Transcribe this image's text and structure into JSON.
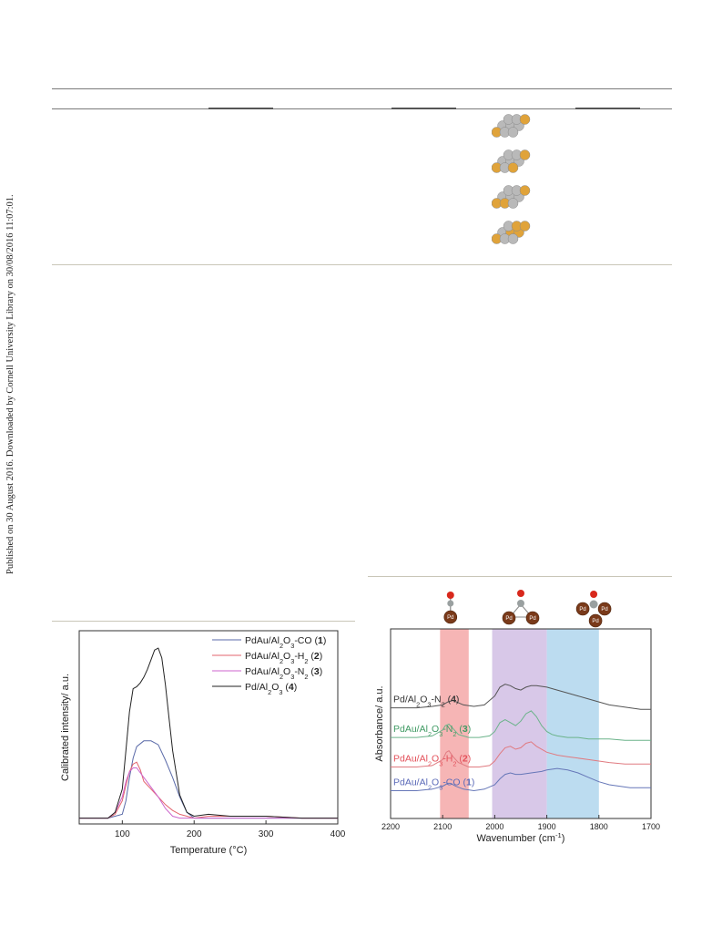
{
  "sidebar_text": "Published on 30 August 2016. Downloaded by Cornell University Library on 30/08/2016 11:07:01.",
  "table_icons": [
    {
      "name": "cluster-1",
      "gold_colors": "#e0a33a",
      "pd_color": "#b9b9b9"
    },
    {
      "name": "cluster-2",
      "gold_colors": "#e0a33a",
      "pd_color": "#b9b9b9"
    },
    {
      "name": "cluster-3",
      "gold_colors": "#e0a33a",
      "pd_color": "#b9b9b9"
    },
    {
      "name": "cluster-4",
      "gold_colors": "#e0a33a",
      "pd_color": "#b9b9b9"
    }
  ],
  "chart_data": [
    {
      "type": "line",
      "xlabel": "Temperature (°C)",
      "ylabel": "Calibrated intensity/ a.u.",
      "xlim": [
        40,
        400
      ],
      "xticks": [
        100,
        200,
        300,
        400
      ],
      "legend_position": "top-right",
      "series": [
        {
          "name": "PdAu/Al2O3-CO (1)",
          "label_main": "PdAu/Al",
          "sub1": "2",
          "mid": "O",
          "sub2": "3",
          "suffix": "-CO (",
          "num": "1",
          "close": ")",
          "color": "#5a6aa8",
          "x": [
            40,
            60,
            80,
            90,
            100,
            105,
            110,
            115,
            120,
            130,
            140,
            150,
            160,
            170,
            180,
            190,
            200,
            220,
            250,
            300,
            350,
            400
          ],
          "y": [
            0.03,
            0.03,
            0.03,
            0.04,
            0.05,
            0.12,
            0.24,
            0.34,
            0.4,
            0.43,
            0.43,
            0.41,
            0.33,
            0.24,
            0.14,
            0.06,
            0.03,
            0.03,
            0.03,
            0.03,
            0.03,
            0.03
          ]
        },
        {
          "name": "PdAu/Al2O3-H2 (2)",
          "label_main": "PdAu/Al",
          "sub1": "2",
          "mid": "O",
          "sub2": "3",
          "suffix": "-H",
          "sub3": "2",
          "tail": " (",
          "num": "2",
          "close": ")",
          "color": "#e3636c",
          "x": [
            40,
            60,
            80,
            90,
            100,
            105,
            110,
            115,
            120,
            125,
            130,
            140,
            150,
            160,
            170,
            180,
            190,
            200,
            220,
            250,
            300,
            350,
            400
          ],
          "y": [
            0.03,
            0.03,
            0.03,
            0.05,
            0.12,
            0.2,
            0.27,
            0.31,
            0.32,
            0.28,
            0.22,
            0.18,
            0.14,
            0.1,
            0.07,
            0.05,
            0.04,
            0.03,
            0.04,
            0.04,
            0.04,
            0.03,
            0.03
          ]
        },
        {
          "name": "PdAu/Al2O3-N2 (3)",
          "label_main": "PdAu/Al",
          "sub1": "2",
          "mid": "O",
          "sub2": "3",
          "suffix": "-N",
          "sub3": "2",
          "tail": " (",
          "num": "3",
          "close": ")",
          "color": "#cc66cc",
          "x": [
            40,
            60,
            80,
            90,
            100,
            105,
            110,
            115,
            120,
            130,
            140,
            150,
            160,
            170,
            180,
            190,
            200,
            220,
            250,
            300,
            350,
            400
          ],
          "y": [
            0.03,
            0.03,
            0.03,
            0.06,
            0.14,
            0.22,
            0.27,
            0.29,
            0.29,
            0.24,
            0.19,
            0.14,
            0.08,
            0.04,
            0.03,
            0.03,
            0.03,
            0.03,
            0.03,
            0.03,
            0.03,
            0.03
          ]
        },
        {
          "name": "Pd/Al2O3 (4)",
          "label_main": "Pd/Al",
          "sub1": "2",
          "mid": "O",
          "sub2": "3",
          "suffix": "",
          "tail": " (",
          "num": "4",
          "close": ")",
          "color": "#222222",
          "x": [
            40,
            60,
            80,
            90,
            100,
            105,
            110,
            115,
            120,
            125,
            130,
            135,
            140,
            145,
            150,
            155,
            160,
            165,
            170,
            180,
            190,
            200,
            220,
            250,
            300,
            350,
            400
          ],
          "y": [
            0.03,
            0.03,
            0.03,
            0.06,
            0.18,
            0.38,
            0.58,
            0.7,
            0.71,
            0.73,
            0.76,
            0.8,
            0.85,
            0.9,
            0.91,
            0.86,
            0.72,
            0.55,
            0.38,
            0.15,
            0.06,
            0.04,
            0.05,
            0.04,
            0.04,
            0.03,
            0.03
          ]
        }
      ]
    },
    {
      "type": "line",
      "xlabel": "Wavenumber (cm",
      "xlabel_sup": "-1",
      "xlabel_close": ")",
      "ylabel": "Absorbance/ a.u.",
      "xlim": [
        2200,
        1700
      ],
      "xticks": [
        2200,
        2100,
        2000,
        1900,
        1800,
        1700
      ],
      "bands": [
        {
          "from": 2105,
          "to": 2050,
          "color": "#f6b5b5"
        },
        {
          "from": 2005,
          "to": 1900,
          "color": "#d8c8e8"
        },
        {
          "from": 1900,
          "to": 1800,
          "color": "#bcdcf0"
        }
      ],
      "insets": [
        {
          "type": "linear",
          "center": 2085,
          "pd_labels": [
            "Pd"
          ]
        },
        {
          "type": "bridge",
          "center": 1950,
          "pd_labels": [
            "Pd",
            "Pd"
          ]
        },
        {
          "type": "hollow",
          "center": 1810,
          "pd_labels": [
            "Pd",
            "Pd",
            "Pd"
          ]
        }
      ],
      "series": [
        {
          "label_main": "Pd/Al",
          "sub1": "2",
          "mid": "O",
          "sub2": "3",
          "suffix": "-N",
          "sub3": "2",
          "tail": " (",
          "num": "4",
          "close": ")",
          "color": "#555555",
          "label_color": "#333333",
          "x": [
            2200,
            2150,
            2120,
            2100,
            2090,
            2080,
            2060,
            2040,
            2020,
            2000,
            1990,
            1980,
            1970,
            1960,
            1950,
            1940,
            1930,
            1920,
            1900,
            1880,
            1860,
            1840,
            1820,
            1800,
            1780,
            1760,
            1740,
            1720,
            1700
          ],
          "y": [
            0.62,
            0.62,
            0.63,
            0.64,
            0.66,
            0.67,
            0.64,
            0.63,
            0.64,
            0.7,
            0.76,
            0.78,
            0.77,
            0.75,
            0.74,
            0.76,
            0.77,
            0.77,
            0.76,
            0.74,
            0.72,
            0.7,
            0.68,
            0.66,
            0.64,
            0.63,
            0.62,
            0.61,
            0.61
          ]
        },
        {
          "label_main": "PdAu/Al",
          "sub1": "2",
          "mid": "O",
          "sub2": "3",
          "suffix": "-N",
          "sub3": "2",
          "tail": " (",
          "num": "3",
          "close": ")",
          "color": "#6bb38a",
          "label_color": "#3f9a63",
          "x": [
            2200,
            2150,
            2120,
            2100,
            2095,
            2088,
            2080,
            2070,
            2050,
            2030,
            2010,
            2000,
            1990,
            1980,
            1970,
            1960,
            1950,
            1940,
            1930,
            1920,
            1910,
            1900,
            1890,
            1880,
            1860,
            1840,
            1820,
            1800,
            1780,
            1750,
            1700
          ],
          "y": [
            0.42,
            0.42,
            0.43,
            0.47,
            0.5,
            0.51,
            0.48,
            0.44,
            0.42,
            0.42,
            0.43,
            0.46,
            0.52,
            0.54,
            0.52,
            0.5,
            0.53,
            0.58,
            0.6,
            0.56,
            0.5,
            0.46,
            0.44,
            0.43,
            0.42,
            0.42,
            0.41,
            0.41,
            0.41,
            0.4,
            0.4
          ]
        },
        {
          "label_main": "PdAu/Al",
          "sub1": "2",
          "mid": "O",
          "sub2": "3",
          "suffix": "-H",
          "sub3": "2",
          "tail": " (",
          "num": "2",
          "close": ")",
          "color": "#e07a80",
          "label_color": "#e3505a",
          "x": [
            2200,
            2150,
            2120,
            2100,
            2093,
            2088,
            2080,
            2070,
            2050,
            2030,
            2010,
            2000,
            1990,
            1980,
            1970,
            1960,
            1950,
            1940,
            1930,
            1920,
            1900,
            1880,
            1860,
            1840,
            1820,
            1800,
            1780,
            1750,
            1700
          ],
          "y": [
            0.22,
            0.22,
            0.23,
            0.27,
            0.32,
            0.33,
            0.29,
            0.25,
            0.22,
            0.22,
            0.23,
            0.26,
            0.31,
            0.35,
            0.36,
            0.34,
            0.35,
            0.38,
            0.39,
            0.36,
            0.32,
            0.3,
            0.29,
            0.28,
            0.27,
            0.26,
            0.25,
            0.24,
            0.24
          ]
        },
        {
          "label_main": "PdAu/Al",
          "sub1": "2",
          "mid": "O",
          "sub2": "3",
          "suffix": "-CO (",
          "num": "1",
          "close": ")",
          "color": "#6677b8",
          "label_color": "#5b6ab8",
          "x": [
            2200,
            2150,
            2120,
            2100,
            2090,
            2085,
            2075,
            2060,
            2040,
            2020,
            2000,
            1990,
            1980,
            1970,
            1960,
            1950,
            1930,
            1910,
            1900,
            1880,
            1860,
            1840,
            1820,
            1800,
            1780,
            1760,
            1740,
            1720,
            1700
          ],
          "y": [
            0.06,
            0.06,
            0.07,
            0.09,
            0.11,
            0.11,
            0.09,
            0.07,
            0.06,
            0.07,
            0.1,
            0.14,
            0.17,
            0.18,
            0.17,
            0.17,
            0.18,
            0.19,
            0.2,
            0.21,
            0.2,
            0.18,
            0.15,
            0.12,
            0.1,
            0.09,
            0.08,
            0.08,
            0.08
          ]
        }
      ]
    }
  ]
}
